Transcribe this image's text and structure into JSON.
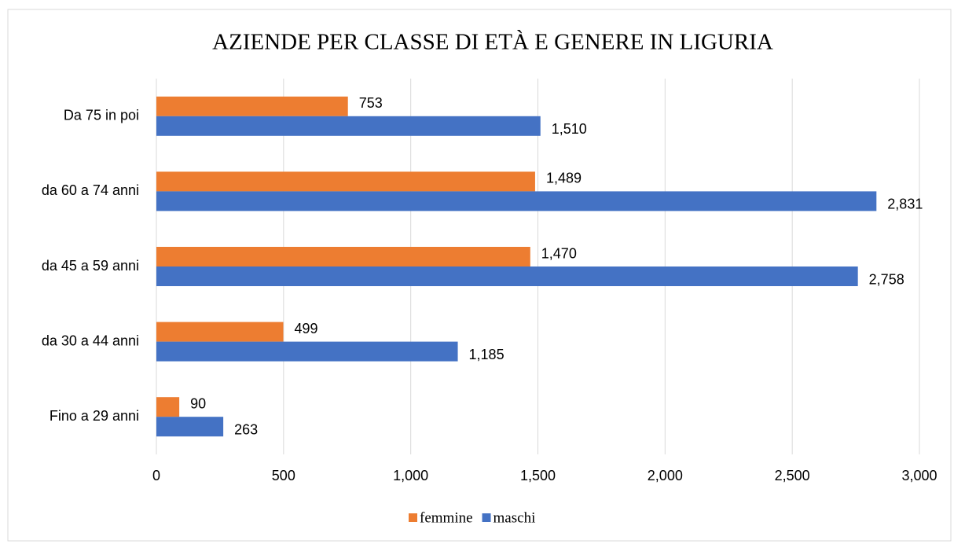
{
  "chart_data": {
    "type": "barh",
    "title": "AZIENDE PER CLASSE DI ETÀ E GENERE IN LIGURIA",
    "categories": [
      "Da 75 in poi",
      "da 60 a 74 anni",
      "da 45 a 59 anni",
      "da 30 a 44 anni",
      "Fino a 29 anni"
    ],
    "series": [
      {
        "name": "femmine",
        "color": "#ed7d31",
        "values": [
          753,
          1489,
          1470,
          499,
          90
        ],
        "value_labels": [
          "753",
          "1,489",
          "1,470",
          "499",
          "90"
        ]
      },
      {
        "name": "maschi",
        "color": "#4472c4",
        "values": [
          1510,
          2831,
          2758,
          1185,
          263
        ],
        "value_labels": [
          "1,510",
          "2,831",
          "2,758",
          "1,185",
          "263"
        ]
      }
    ],
    "xlim": [
      0,
      3000
    ],
    "xticks": [
      0,
      500,
      {
        "value": 1000,
        "label": "1,000"
      },
      {
        "value": 1500,
        "label": "1,500"
      },
      {
        "value": 2000,
        "label": "2,000"
      },
      {
        "value": 2500,
        "label": "2,500"
      },
      {
        "value": 3000,
        "label": "3,000"
      }
    ],
    "grid": true,
    "legend": "bottom"
  }
}
